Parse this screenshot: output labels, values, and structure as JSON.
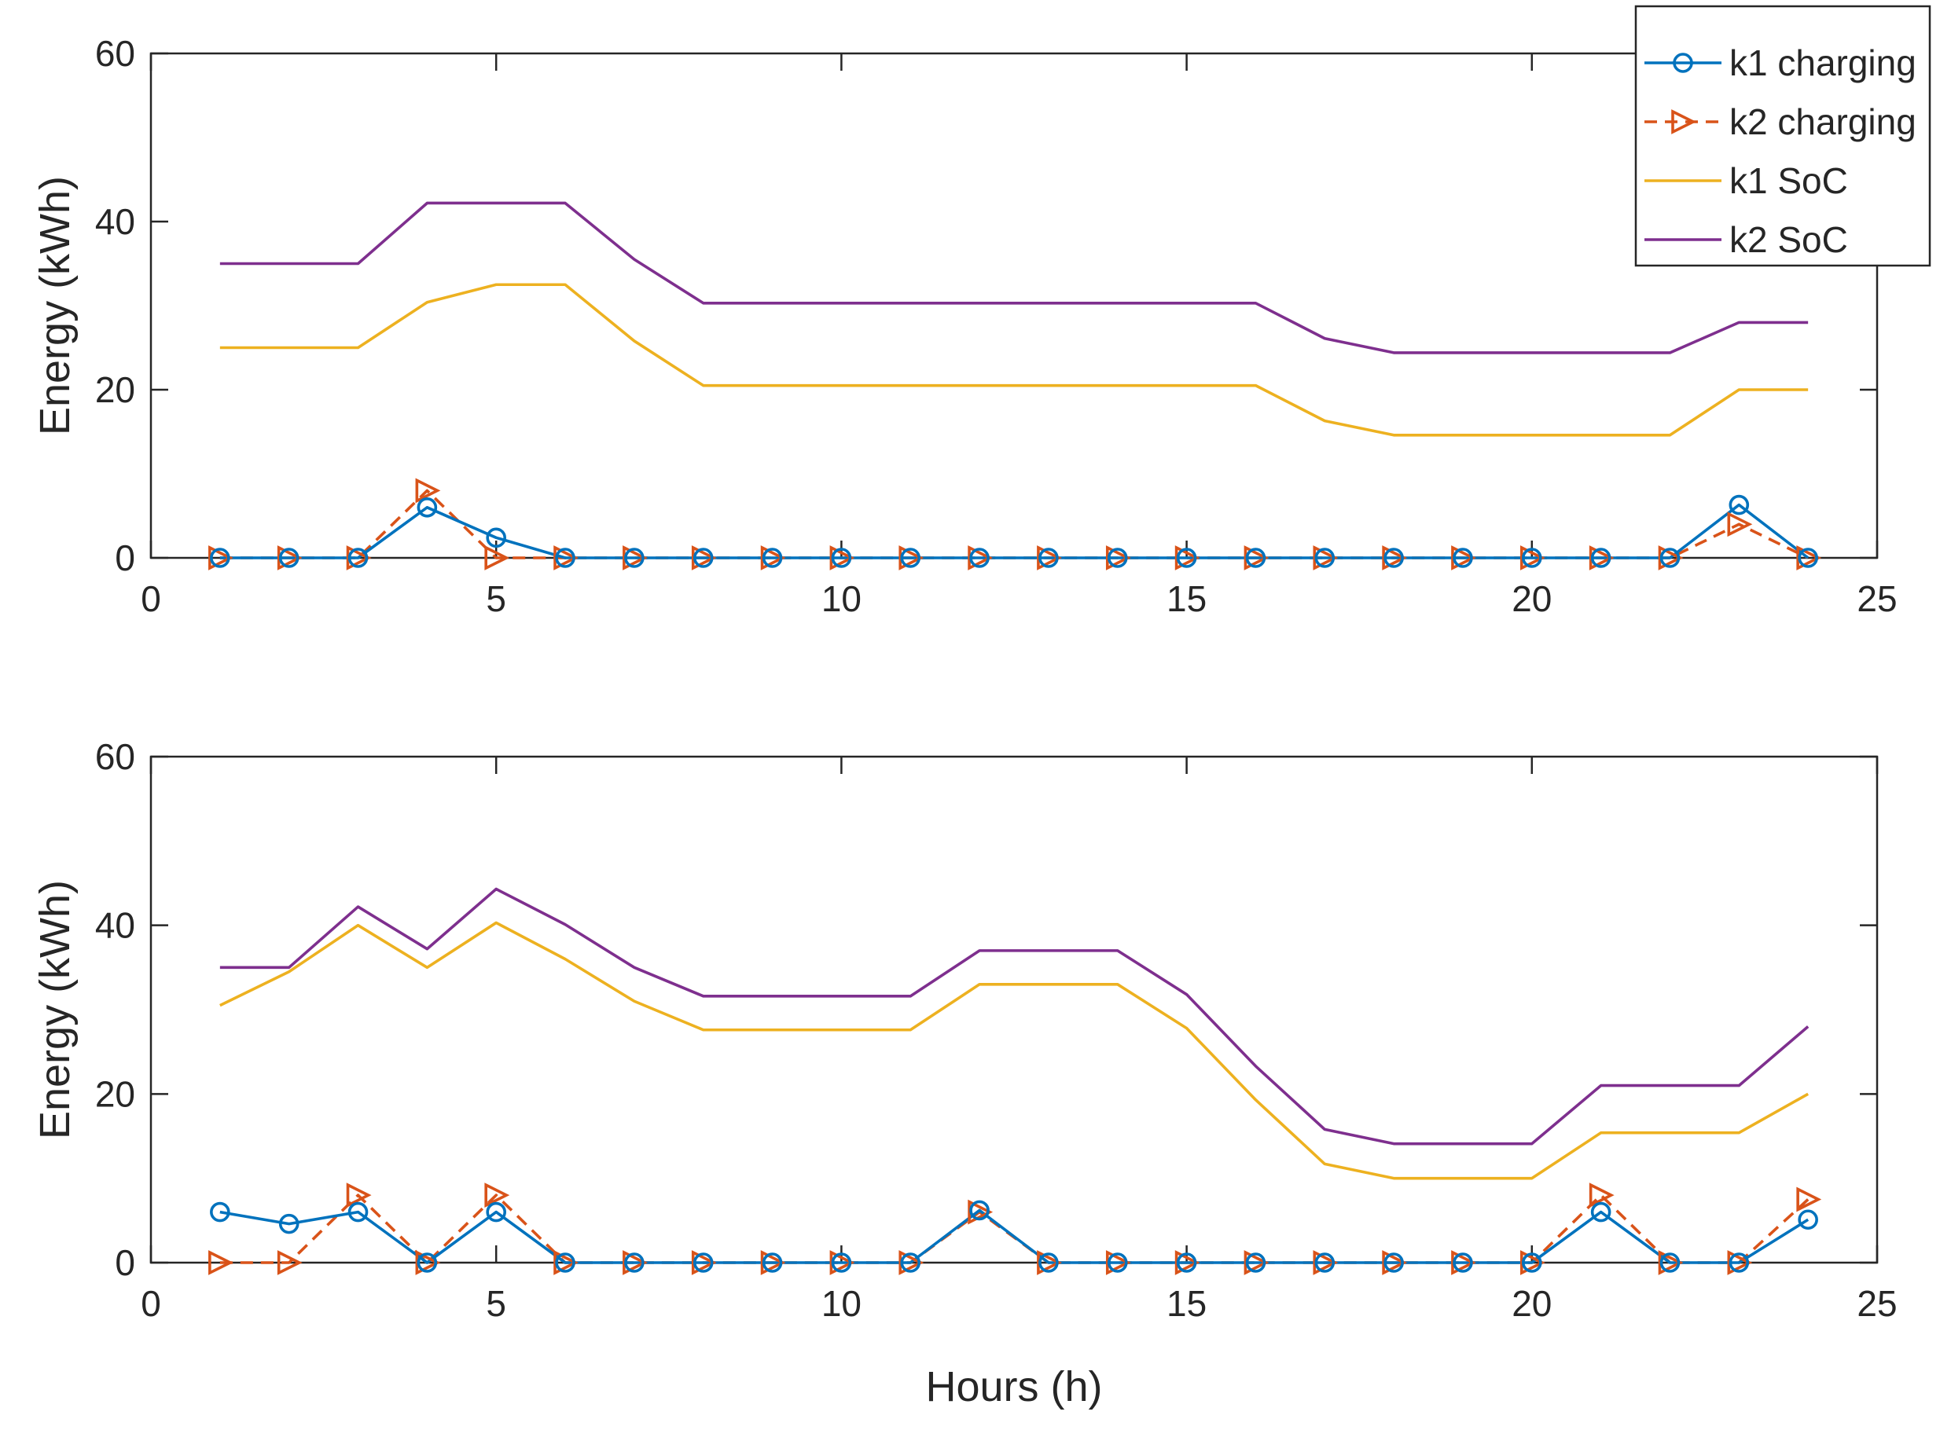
{
  "colors": {
    "k1_charging": "#0072BD",
    "k2_charging": "#D95319",
    "k1_soc": "#EDB120",
    "k2_soc": "#7E2F8E",
    "axes": "#262626"
  },
  "chart_data": [
    {
      "type": "line",
      "title": "",
      "xlabel": "",
      "ylabel": "Energy (kWh)",
      "xlim": [
        0,
        25
      ],
      "ylim": [
        0,
        60
      ],
      "xticks": [
        0,
        5,
        10,
        15,
        20,
        25
      ],
      "yticks": [
        0,
        20,
        40,
        60
      ],
      "xtick_labels": [
        "0",
        "5",
        "10",
        "15",
        "20",
        "25"
      ],
      "ytick_labels": [
        "0",
        "20",
        "40",
        "60"
      ],
      "grid": false,
      "legend_position": "top-right",
      "x": [
        1,
        2,
        3,
        4,
        5,
        6,
        7,
        8,
        9,
        10,
        11,
        12,
        13,
        14,
        15,
        16,
        17,
        18,
        19,
        20,
        21,
        22,
        23,
        24
      ],
      "series": [
        {
          "key": "k1_charging",
          "name": "k1 charging",
          "marker": "circle",
          "dash": "solid",
          "values": [
            0,
            0,
            0,
            6,
            2.4,
            0,
            0,
            0,
            0,
            0,
            0,
            0,
            0,
            0,
            0,
            0,
            0,
            0,
            0,
            0,
            0,
            0,
            6.3,
            0
          ]
        },
        {
          "key": "k2_charging",
          "name": "k2 charging",
          "marker": "triangle-right",
          "dash": "dashed",
          "values": [
            0,
            0,
            0,
            8,
            0,
            0,
            0,
            0,
            0,
            0,
            0,
            0,
            0,
            0,
            0,
            0,
            0,
            0,
            0,
            0,
            0,
            0,
            4,
            0
          ]
        },
        {
          "key": "k1_soc",
          "name": "k1 SoC",
          "marker": "none",
          "dash": "solid",
          "values": [
            25,
            25,
            25,
            30.4,
            32.5,
            32.5,
            25.8,
            20.5,
            20.5,
            20.5,
            20.5,
            20.5,
            20.5,
            20.5,
            20.5,
            20.5,
            16.3,
            14.6,
            14.6,
            14.6,
            14.6,
            14.6,
            20,
            20
          ]
        },
        {
          "key": "k2_soc",
          "name": "k2 SoC",
          "marker": "none",
          "dash": "solid",
          "values": [
            35,
            35,
            35,
            42.2,
            42.2,
            42.2,
            35.5,
            30.3,
            30.3,
            30.3,
            30.3,
            30.3,
            30.3,
            30.3,
            30.3,
            30.3,
            26.1,
            24.4,
            24.4,
            24.4,
            24.4,
            24.4,
            28,
            28
          ]
        }
      ]
    },
    {
      "type": "line",
      "title": "",
      "xlabel": "Hours (h)",
      "ylabel": "Energy (kWh)",
      "xlim": [
        0,
        25
      ],
      "ylim": [
        0,
        60
      ],
      "xticks": [
        0,
        5,
        10,
        15,
        20,
        25
      ],
      "yticks": [
        0,
        20,
        40,
        60
      ],
      "xtick_labels": [
        "0",
        "5",
        "10",
        "15",
        "20",
        "25"
      ],
      "ytick_labels": [
        "0",
        "20",
        "40",
        "60"
      ],
      "grid": false,
      "x": [
        1,
        2,
        3,
        4,
        5,
        6,
        7,
        8,
        9,
        10,
        11,
        12,
        13,
        14,
        15,
        16,
        17,
        18,
        19,
        20,
        21,
        22,
        23,
        24
      ],
      "series": [
        {
          "key": "k1_charging",
          "name": "k1 charging",
          "marker": "circle",
          "dash": "solid",
          "values": [
            6,
            4.6,
            6,
            0,
            6,
            0,
            0,
            0,
            0,
            0,
            0,
            6.2,
            0,
            0,
            0,
            0,
            0,
            0,
            0,
            0,
            6,
            0,
            0,
            5.1
          ]
        },
        {
          "key": "k2_charging",
          "name": "k2 charging",
          "marker": "triangle-right",
          "dash": "dashed",
          "values": [
            0,
            0,
            8,
            0,
            8,
            0,
            0,
            0,
            0,
            0,
            0,
            6,
            0,
            0,
            0,
            0,
            0,
            0,
            0,
            0,
            8,
            0,
            0,
            7.5
          ]
        },
        {
          "key": "k1_soc",
          "name": "k1 SoC",
          "marker": "none",
          "dash": "solid",
          "values": [
            30.5,
            34.5,
            40,
            35,
            40.3,
            36,
            31,
            27.6,
            27.6,
            27.6,
            27.6,
            33,
            33,
            33,
            27.8,
            19.3,
            11.7,
            10,
            10,
            10,
            15.4,
            15.4,
            15.4,
            20
          ]
        },
        {
          "key": "k2_soc",
          "name": "k2 SoC",
          "marker": "none",
          "dash": "solid",
          "values": [
            35,
            35,
            42.2,
            37.2,
            44.3,
            40.1,
            35,
            31.6,
            31.6,
            31.6,
            31.6,
            37,
            37,
            37,
            31.8,
            23.3,
            15.8,
            14.1,
            14.1,
            14.1,
            21,
            21,
            21,
            28
          ]
        }
      ]
    }
  ]
}
